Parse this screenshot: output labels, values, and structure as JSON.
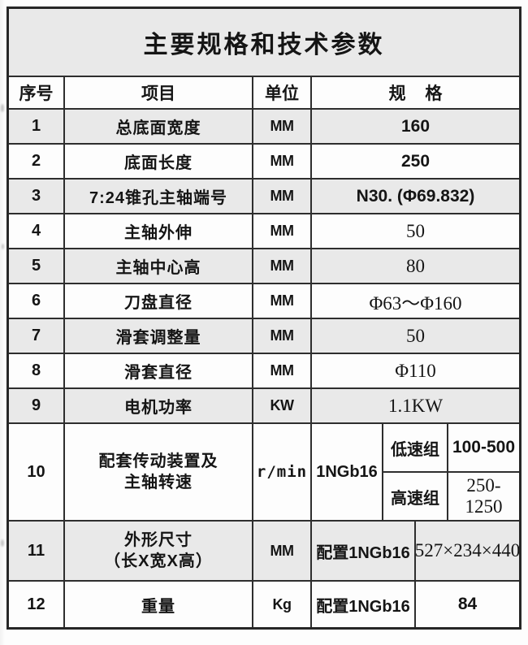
{
  "table": {
    "title": "主要规格和技术参数",
    "columns": {
      "no": "序号",
      "item": "项目",
      "unit": "单位",
      "spec": "规 格"
    },
    "rows": [
      {
        "no": "1",
        "item": "总底面宽度",
        "unit": "MM",
        "spec": "160"
      },
      {
        "no": "2",
        "item": "底面长度",
        "unit": "MM",
        "spec": "250"
      },
      {
        "no": "3",
        "item": "7:24锥孔主轴端号",
        "unit": "MM",
        "spec": "N30. (Φ69.832)"
      },
      {
        "no": "4",
        "item": "主轴外伸",
        "unit": "MM",
        "spec": "50"
      },
      {
        "no": "5",
        "item": "主轴中心高",
        "unit": "MM",
        "spec": "80"
      },
      {
        "no": "6",
        "item": "刀盘直径",
        "unit": "MM",
        "spec": "Φ63～Φ160"
      },
      {
        "no": "7",
        "item": "滑套调整量",
        "unit": "MM",
        "spec": "50"
      },
      {
        "no": "8",
        "item": "滑套直径",
        "unit": "MM",
        "spec": "Φ110"
      },
      {
        "no": "9",
        "item": "电机功率",
        "unit": "KW",
        "spec": "1.1KW"
      },
      {
        "no": "10",
        "item_line1": "配套传动装置及",
        "item_line2": "主轴转速",
        "unit": "r/min",
        "gearbox": "1NGb16",
        "low_group_label": "低速组",
        "low_group_value": "100-500",
        "high_group_label": "高速组",
        "high_group_value": "250-1250"
      },
      {
        "no": "11",
        "item_line1": "外形尺寸",
        "item_line2": "（长X宽X高）",
        "unit": "MM",
        "config": "配置1NGb16",
        "spec": "527×234×440"
      },
      {
        "no": "12",
        "item": "重量",
        "unit": "Kg",
        "config": "配置1NGb16",
        "spec": "84"
      }
    ],
    "colors": {
      "shaded_row": "#e9e9e9",
      "plain_row": "#fdfdfd",
      "grid_line": "#2e2e2e"
    }
  }
}
